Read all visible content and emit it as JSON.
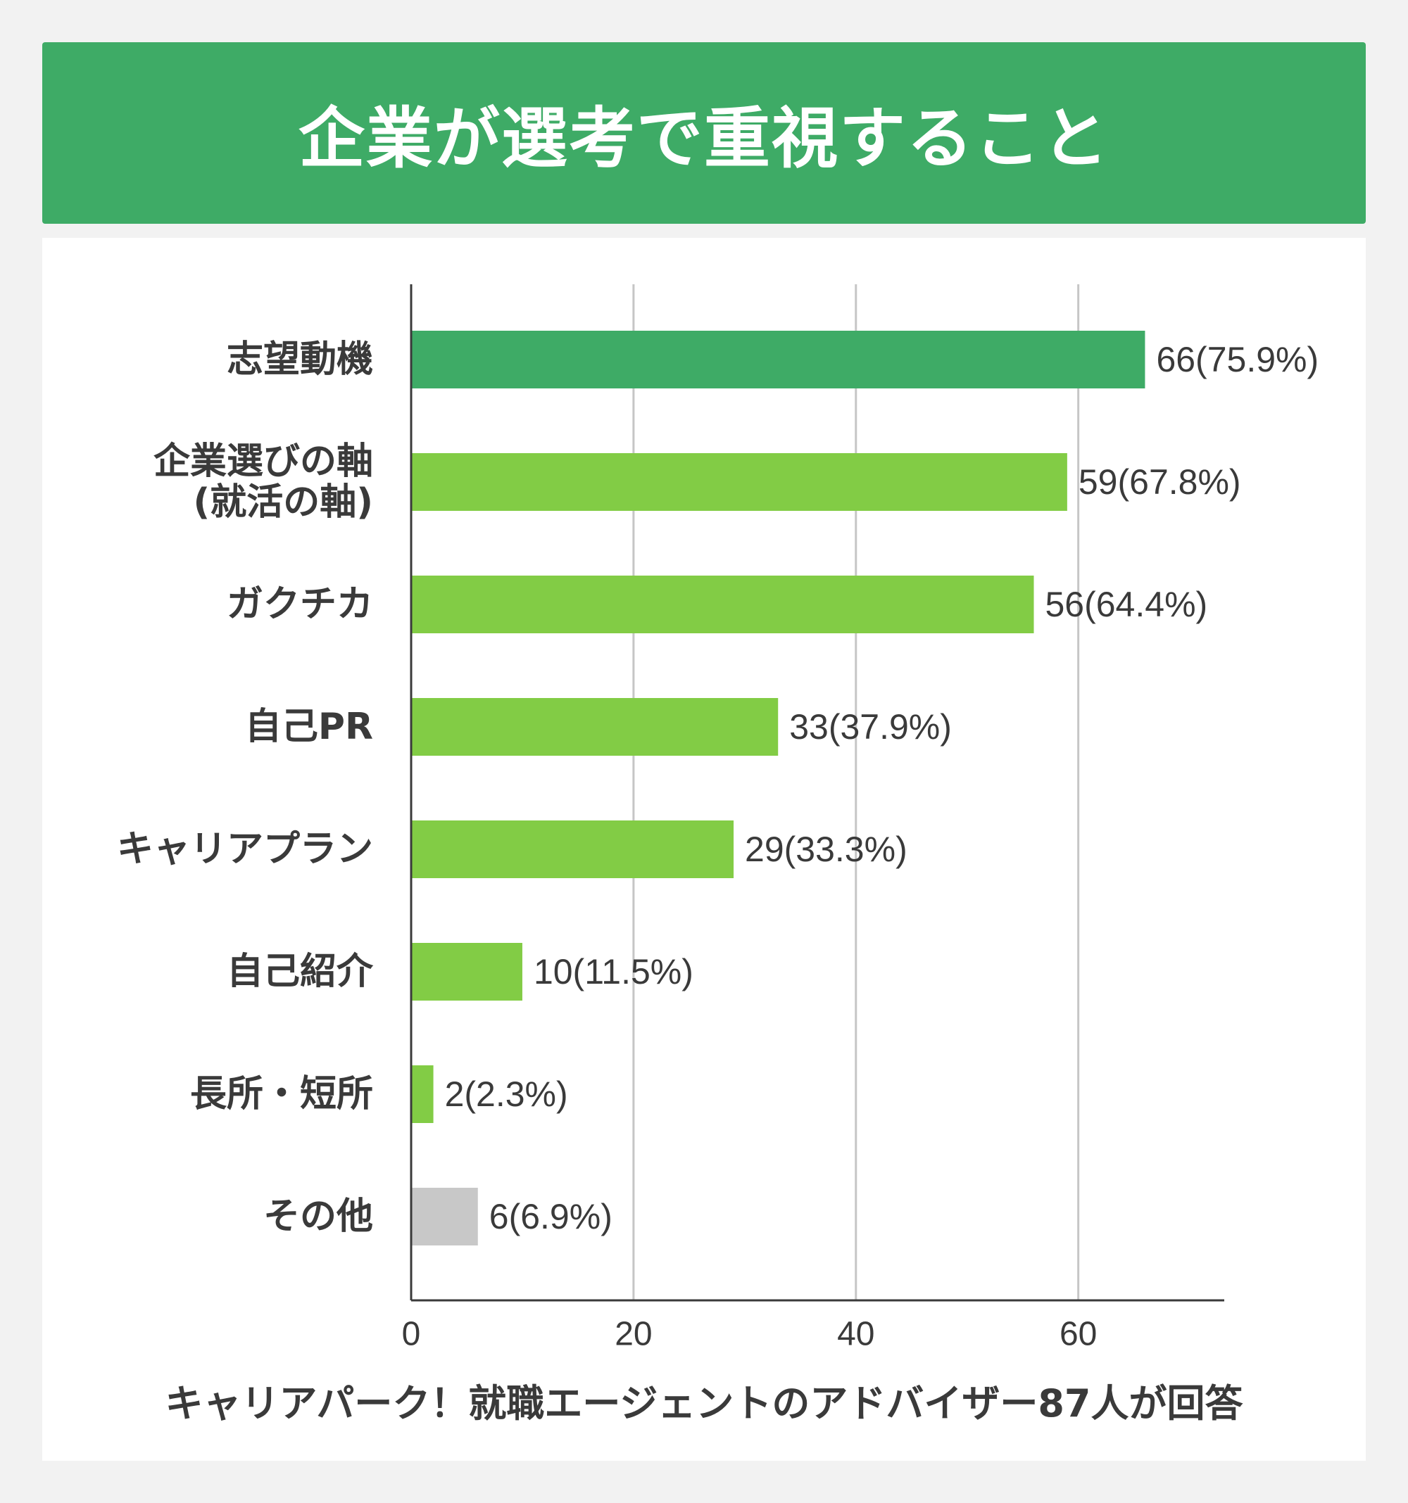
{
  "title": "企業が選考で重視すること",
  "colors": {
    "banner": "#3eab66",
    "top_bar": "#3eab66",
    "bar": "#82cc45",
    "other_bar": "#c8c8c8",
    "grid": "#c6c6c6",
    "axis": "#3a3a3a",
    "text": "#3a3a3a"
  },
  "chart_data": {
    "type": "bar",
    "orientation": "horizontal",
    "categories": [
      "志望動機",
      "企業選びの軸\n(就活の軸)",
      "ガクチカ",
      "自己PR",
      "キャリアプラン",
      "自己紹介",
      "長所・短所",
      "その他"
    ],
    "values": [
      66,
      59,
      56,
      33,
      29,
      10,
      2,
      6
    ],
    "value_labels": [
      "66(75.9%)",
      "59(67.8%)",
      "56(64.4%)",
      "33(37.9%)",
      "29(33.3%)",
      "10(11.5%)",
      "2(2.3%)",
      "6(6.9%)"
    ],
    "bar_color_keys": [
      "top_bar",
      "bar",
      "bar",
      "bar",
      "bar",
      "bar",
      "bar",
      "other_bar"
    ],
    "xlim": [
      0,
      73
    ],
    "xticks": [
      0,
      20,
      40,
      60
    ],
    "grid": "vertical",
    "legend": "none"
  },
  "footnote": "キャリアパーク！就職エージェントのアドバイザー87人が回答"
}
